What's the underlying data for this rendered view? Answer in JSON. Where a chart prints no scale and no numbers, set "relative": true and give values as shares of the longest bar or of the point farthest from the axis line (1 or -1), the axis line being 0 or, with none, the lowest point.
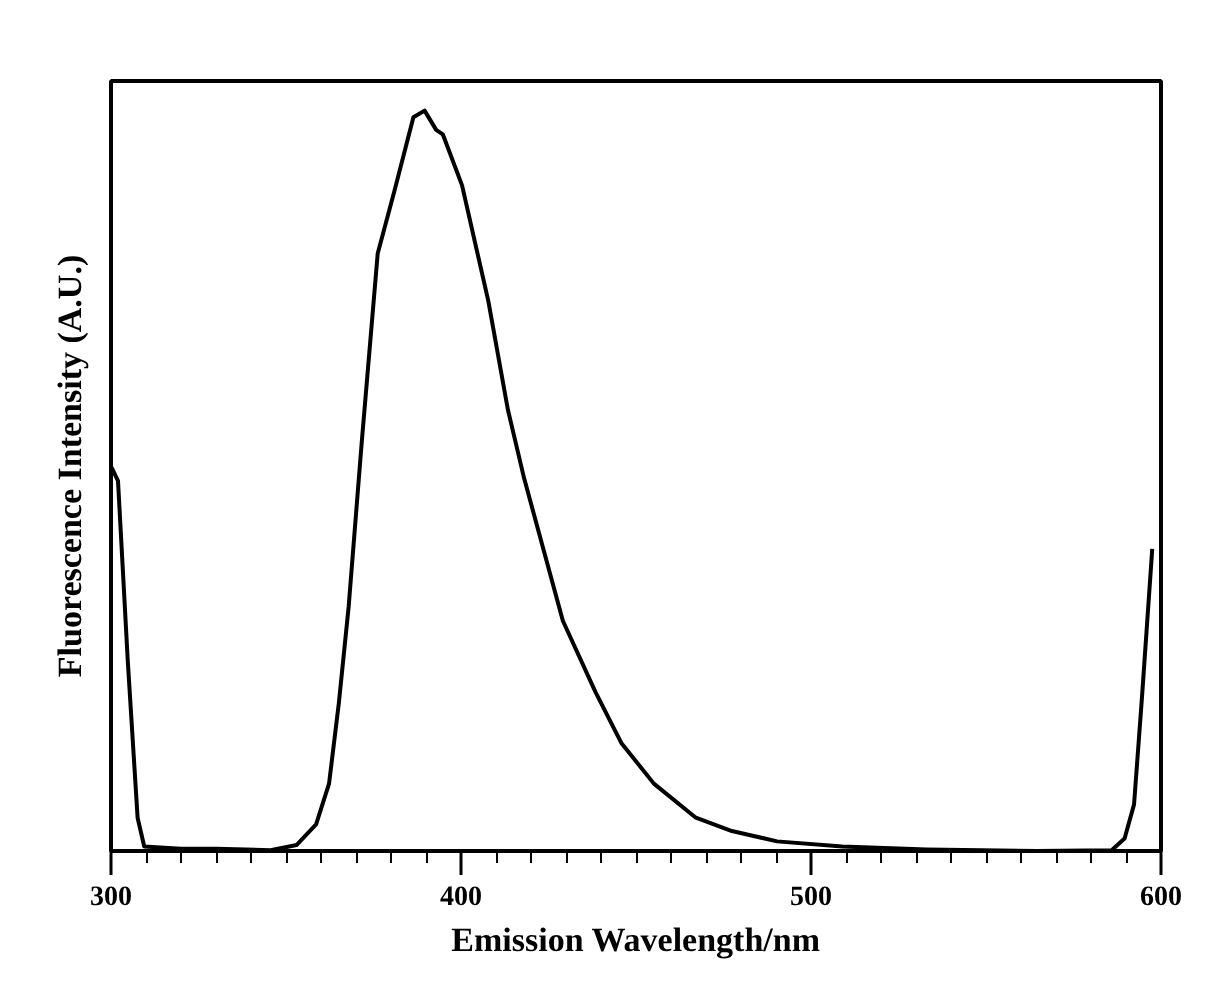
{
  "chart_data": {
    "type": "line",
    "relative": true,
    "xlabel": "Emission Wavelength/nm",
    "ylabel": "Fluorescence Intensity (A.U.)",
    "xlim": [
      300,
      600
    ],
    "xticks": [
      300,
      400,
      500,
      600
    ],
    "grid": false,
    "marker": "none",
    "line_style": "solid",
    "series": [
      {
        "color": "#000000",
        "x": [
          300.2,
          302,
          304.8,
          307.6,
          309.5,
          320,
          330,
          345.6,
          353,
          358.6,
          362.3,
          365.1,
          367.9,
          371.6,
          376.2,
          380.9,
          386.4,
          389.6,
          392.9,
          394.8,
          400.3,
          407.8,
          413.4,
          418,
          429.1,
          438.4,
          445.8,
          455.1,
          467.1,
          477.4,
          490.3,
          508.9,
          533,
          564.5,
          585.9,
          589.6,
          592.3,
          594.6,
          597.5
        ],
        "values": [
          0.518,
          0.5,
          0.256,
          0.045,
          0.006,
          0.003,
          0.003,
          0.001,
          0.008,
          0.036,
          0.091,
          0.2,
          0.33,
          0.55,
          0.807,
          0.89,
          0.991,
          1.0,
          0.974,
          0.968,
          0.899,
          0.743,
          0.596,
          0.504,
          0.311,
          0.215,
          0.146,
          0.091,
          0.045,
          0.027,
          0.013,
          0.006,
          0.002,
          0.0,
          0.001,
          0.017,
          0.063,
          0.21,
          0.408
        ]
      }
    ]
  }
}
